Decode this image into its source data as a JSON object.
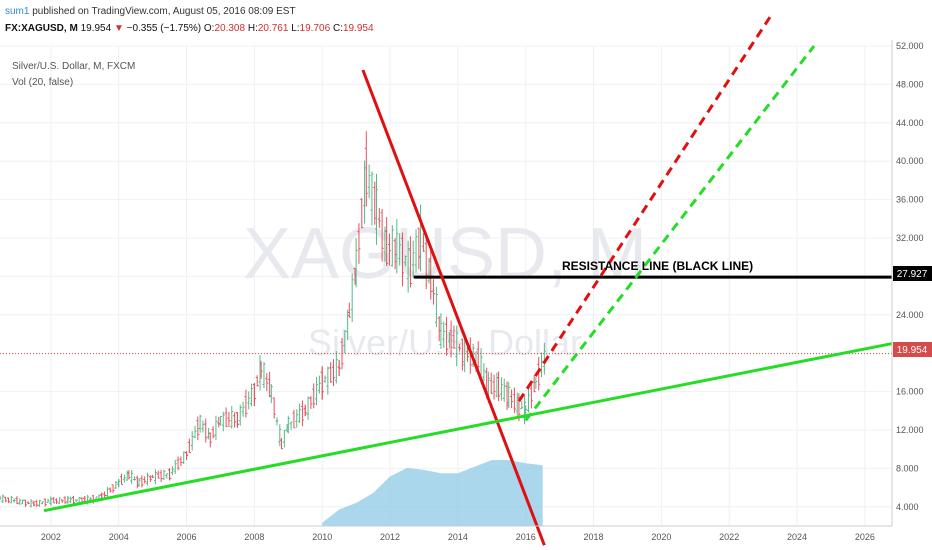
{
  "header": {
    "user": "sum1",
    "published": " published on TradingView.com, August 05, 2016 08:09 EST",
    "symbol": "FX:XAGUSD, M",
    "last": "19.954",
    "change_arrow": "▼",
    "change": "−0.355 (−1.75%)",
    "open_label": "O:",
    "open": "20.308",
    "high_label": "H:",
    "high": "20.761",
    "low_label": "L:",
    "low": "19.706",
    "close_label": "C:",
    "close": "19.954"
  },
  "legend": {
    "series_title": "Silver/U.S. Dollar, M, FXCM",
    "volume_title": "Vol (20, false)"
  },
  "watermark": {
    "symbol": "XAGUSD, M",
    "name": "Silver/U.S. Dollar"
  },
  "annotation": {
    "resistance_label": "RESISTANCE LINE (BLACK LINE)"
  },
  "colors": {
    "up": "#53b987",
    "down": "#eb4d5c",
    "resistance": "#000000",
    "trend_down": "#e01010",
    "trend_up": "#26dc26",
    "volume": "#8ecae6"
  },
  "price_labels": {
    "resistance": "27.927",
    "last": "19.954"
  },
  "chart_data": {
    "type": "line",
    "title": "Silver/U.S. Dollar, M, FXCM",
    "x_range": [
      2000.5,
      2026.8
    ],
    "y_range": [
      2,
      52
    ],
    "x_ticks": [
      "2002",
      "2004",
      "2006",
      "2008",
      "2010",
      "2012",
      "2014",
      "2016",
      "2018",
      "2020",
      "2022",
      "2024",
      "2026"
    ],
    "y_ticks": [
      "4.000",
      "8.000",
      "12.000",
      "16.000",
      "20.000",
      "24.000",
      "28.000",
      "32.000",
      "36.000",
      "40.000",
      "44.000",
      "48.000",
      "52.000"
    ],
    "price_series": {
      "name": "Silver/U.S. Dollar",
      "x": [
        2000.5,
        2001.0,
        2001.5,
        2002.0,
        2002.5,
        2003.0,
        2003.5,
        2004.0,
        2004.3,
        2004.6,
        2005.0,
        2005.5,
        2006.0,
        2006.4,
        2006.7,
        2007.0,
        2007.5,
        2008.0,
        2008.2,
        2008.5,
        2008.8,
        2009.0,
        2009.5,
        2010.0,
        2010.5,
        2010.8,
        2011.0,
        2011.3,
        2011.6,
        2011.9,
        2012.2,
        2012.6,
        2012.9,
        2013.2,
        2013.5,
        2013.8,
        2014.2,
        2014.6,
        2014.9,
        2015.2,
        2015.5,
        2015.8,
        2016.0,
        2016.3,
        2016.6
      ],
      "y": [
        4.9,
        4.6,
        4.3,
        4.6,
        4.7,
        4.7,
        5.0,
        6.5,
        7.3,
        6.5,
        7.1,
        7.4,
        9.5,
        12.8,
        11.2,
        13.0,
        13.2,
        16.0,
        18.5,
        16.0,
        10.5,
        12.5,
        14.0,
        17.0,
        18.5,
        24.0,
        29.0,
        39.0,
        35.0,
        31.0,
        31.0,
        29.0,
        32.0,
        28.0,
        22.0,
        21.5,
        20.0,
        19.5,
        16.5,
        16.5,
        15.5,
        14.5,
        14.0,
        17.0,
        19.9
      ]
    },
    "volume_series": {
      "name": "Vol (20, false)",
      "x": [
        2010.0,
        2010.5,
        2011.0,
        2011.5,
        2012.0,
        2012.5,
        2013.0,
        2013.5,
        2014.0,
        2014.5,
        2015.0,
        2015.5,
        2016.0,
        2016.5
      ],
      "y": [
        0.5,
        2.5,
        3.5,
        5.0,
        7.5,
        8.8,
        8.5,
        8.0,
        8.0,
        9.0,
        10.0,
        10.0,
        9.5,
        9.2
      ]
    },
    "trendlines": [
      {
        "name": "resistance",
        "x": [
          2012.7,
          2026.8
        ],
        "y": [
          27.927,
          27.927
        ]
      },
      {
        "name": "down-trend",
        "x": [
          2011.2,
          2016.55
        ],
        "y": [
          49.5,
          0.0
        ]
      },
      {
        "name": "up-trend",
        "x": [
          2001.8,
          2026.8
        ],
        "y": [
          3.6,
          21.0
        ]
      },
      {
        "name": "projection-red",
        "x": [
          2015.8,
          2023.2
        ],
        "y": [
          15.0,
          55.0
        ],
        "dashed": true
      },
      {
        "name": "projection-green",
        "x": [
          2016.0,
          2024.5
        ],
        "y": [
          13.0,
          52.0
        ],
        "dashed": true
      }
    ],
    "last_price": 19.954,
    "grid": true
  }
}
